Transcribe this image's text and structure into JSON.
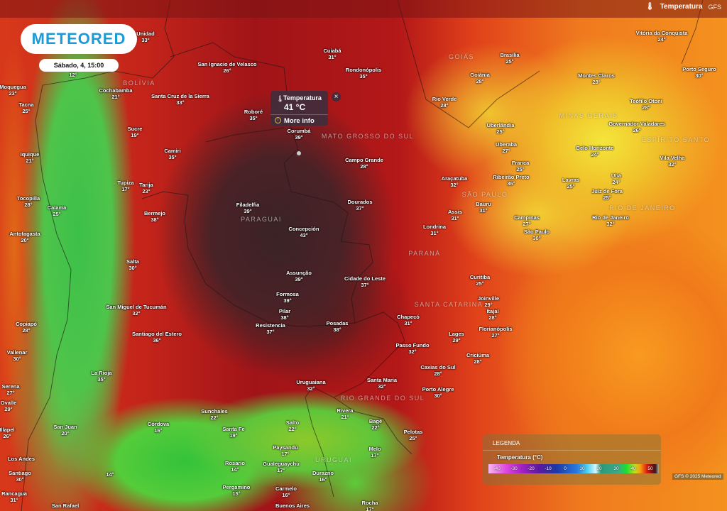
{
  "header": {
    "brand": "METEORED",
    "datetime": "Sábado, 4, 15:00",
    "layer_label": "Temperatura",
    "model": "GFS",
    "thermometer_icon": "thermometer-icon"
  },
  "popup": {
    "title": "Temperatura",
    "value": "41 °C",
    "more_info": "More info",
    "close": "×"
  },
  "legend": {
    "title": "LEGENDA",
    "subtitle": "Temperatura (°C)",
    "ticks": [
      "-40",
      "-30",
      "-20",
      "-10",
      "0",
      "10",
      "20",
      "30",
      "40",
      "50"
    ]
  },
  "credit": "GFS © 2025 Meteored",
  "regions": [
    "BOLÍVIA",
    "PARAGUAI",
    "MATO GROSSO DO SUL",
    "SÃO PAULO",
    "PARANÁ",
    "SANTA CATARINA",
    "RIO GRANDE DO SUL",
    "MINAS GERAIS",
    "ESPÍRITO SANTO",
    "RIO DE JANEIRO",
    "GOIÁS",
    "URUGUAI"
  ],
  "cities": [
    {
      "name": "Unidad",
      "temp": "33°"
    },
    {
      "name": "San Ignacio de Velasco",
      "temp": "26°"
    },
    {
      "name": "Cuiabá",
      "temp": "31°"
    },
    {
      "name": "Rondonópolis",
      "temp": "35°"
    },
    {
      "name": "Brasília",
      "temp": "25°"
    },
    {
      "name": "Goiânia",
      "temp": "28°"
    },
    {
      "name": "Vitória da Conquista",
      "temp": "24°"
    },
    {
      "name": "Porto Seguro",
      "temp": "30°"
    },
    {
      "name": "Montes Claros",
      "temp": "28°"
    },
    {
      "name": "Teófilo Otoni",
      "temp": "28°"
    },
    {
      "name": "Governador Valadares",
      "temp": "26°"
    },
    {
      "name": "Belo Horizonte",
      "temp": "24°"
    },
    {
      "name": "Vila Velha",
      "temp": "32°"
    },
    {
      "name": "Cochabamba",
      "temp": "21°"
    },
    {
      "name": "Santa Cruz de la Sierra",
      "temp": "33°"
    },
    {
      "name": "Roboré",
      "temp": "35°"
    },
    {
      "name": "Corumbá",
      "temp": "39°"
    },
    {
      "name": "Rio Verde",
      "temp": "28°"
    },
    {
      "name": "Uberlândia",
      "temp": "25°"
    },
    {
      "name": "Uberaba",
      "temp": "27°"
    },
    {
      "name": "Sucre",
      "temp": "19°"
    },
    {
      "name": "Camiri",
      "temp": "35°"
    },
    {
      "name": "Campo Grande",
      "temp": "28°"
    },
    {
      "name": "Franca",
      "temp": "25°"
    },
    {
      "name": "Ubá",
      "temp": "24°"
    },
    {
      "name": "Lavras",
      "temp": "25°"
    },
    {
      "name": "Araçatuba",
      "temp": "32°"
    },
    {
      "name": "Ribeirão Preto",
      "temp": "36°"
    },
    {
      "name": "Iquique",
      "temp": "21°"
    },
    {
      "name": "Tupiza",
      "temp": "17°"
    },
    {
      "name": "Tarija",
      "temp": "23°"
    },
    {
      "name": "Juiz de Fora",
      "temp": "25°"
    },
    {
      "name": "Tocopilla",
      "temp": "28°"
    },
    {
      "name": "Calama",
      "temp": "25°"
    },
    {
      "name": "Dourados",
      "temp": "37°"
    },
    {
      "name": "Bauru",
      "temp": "31°"
    },
    {
      "name": "Filadelfia",
      "temp": "39°"
    },
    {
      "name": "Bermejo",
      "temp": "38°"
    },
    {
      "name": "Assis",
      "temp": "31°"
    },
    {
      "name": "Campinas",
      "temp": "27°"
    },
    {
      "name": "Rio de Janeiro",
      "temp": "32°"
    },
    {
      "name": "Antofagasta",
      "temp": "20°"
    },
    {
      "name": "Londrina",
      "temp": "31°"
    },
    {
      "name": "São Paulo",
      "temp": "30°"
    },
    {
      "name": "Concepción",
      "temp": "43°"
    },
    {
      "name": "Salta",
      "temp": "30°"
    },
    {
      "name": "Curitiba",
      "temp": "25°"
    },
    {
      "name": "Assunção",
      "temp": "39°"
    },
    {
      "name": "Cidade do Leste",
      "temp": "37°"
    },
    {
      "name": "Joinville",
      "temp": "29°"
    },
    {
      "name": "Formosa",
      "temp": "39°"
    },
    {
      "name": "San Miguel de Tucumán",
      "temp": "32°"
    },
    {
      "name": "Pilar",
      "temp": "38°"
    },
    {
      "name": "Itajaí",
      "temp": "28°"
    },
    {
      "name": "Chapecó",
      "temp": "31°"
    },
    {
      "name": "Copiapó",
      "temp": "28°"
    },
    {
      "name": "Resistencia",
      "temp": "37°"
    },
    {
      "name": "Posadas",
      "temp": "38°"
    },
    {
      "name": "Florianópolis",
      "temp": "27°"
    },
    {
      "name": "Lages",
      "temp": "29°"
    },
    {
      "name": "Santiago del Estero",
      "temp": "36°"
    },
    {
      "name": "Passo Fundo",
      "temp": "32°"
    },
    {
      "name": "Vallenar",
      "temp": "30°"
    },
    {
      "name": "Caxias do Sul",
      "temp": "28°"
    },
    {
      "name": "Criciúma",
      "temp": "28°"
    },
    {
      "name": "La Rioja",
      "temp": "35°"
    },
    {
      "name": "Uruguaiana",
      "temp": "32°"
    },
    {
      "name": "Santa Maria",
      "temp": "32°"
    },
    {
      "name": "Porto Alegre",
      "temp": "30°"
    },
    {
      "name": "Serena",
      "temp": "27°"
    },
    {
      "name": "Ovalle",
      "temp": "29°"
    },
    {
      "name": "Sunchales",
      "temp": "22°"
    },
    {
      "name": "Rivera",
      "temp": "21°"
    },
    {
      "name": "Bagé",
      "temp": "22°"
    },
    {
      "name": "San Juan",
      "temp": "20°"
    },
    {
      "name": "Córdova",
      "temp": "16°"
    },
    {
      "name": "Salto",
      "temp": "22°"
    },
    {
      "name": "Santa Fe",
      "temp": "19°"
    },
    {
      "name": "Pelotas",
      "temp": "25°"
    },
    {
      "name": "Illapel",
      "temp": "26°"
    },
    {
      "name": "Paysandú",
      "temp": "17°"
    },
    {
      "name": "Melo",
      "temp": "17°"
    },
    {
      "name": "Rosario",
      "temp": "14°"
    },
    {
      "name": "Gualeguaychu",
      "temp": "17°"
    },
    {
      "name": "Durazno",
      "temp": "16°"
    },
    {
      "name": "Pergamino",
      "temp": "15°"
    },
    {
      "name": "Carmelo",
      "temp": "16°"
    },
    {
      "name": "Rancagua",
      "temp": "31°"
    },
    {
      "name": "Moquegua",
      "temp": "23°"
    },
    {
      "name": "Tacna",
      "temp": "25°"
    },
    {
      "name": "Los Andes",
      "temp": ""
    },
    {
      "name": "Santiago",
      "temp": "30°"
    },
    {
      "name": "San Rafael",
      "temp": ""
    },
    {
      "name": "Buenos Aires",
      "temp": ""
    },
    {
      "name": "Rocha",
      "temp": "17°"
    },
    {
      "name": "",
      "temp": "12°"
    },
    {
      "name": "",
      "temp": "14°"
    }
  ]
}
